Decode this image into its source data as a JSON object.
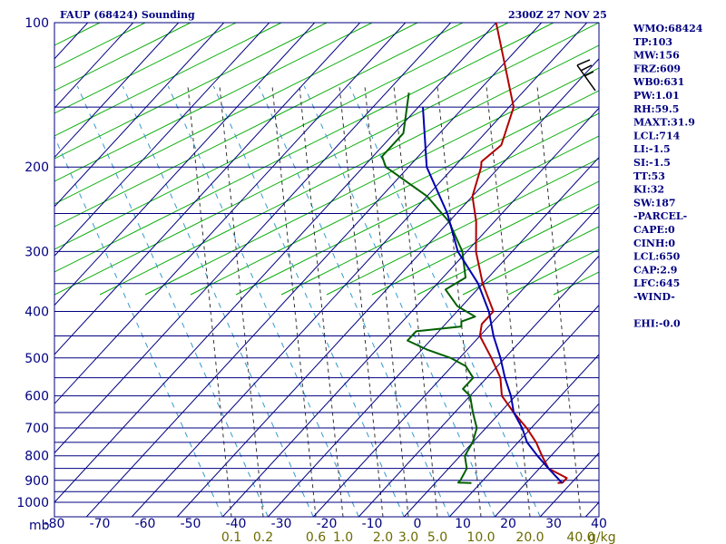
{
  "title_left": "FAUP (68424) Sounding",
  "title_right": "2300Z 27 NOV 25",
  "side_panel": [
    "WMO:68424",
    "TP:103",
    "MW:156",
    "FRZ:609",
    "WB0:631",
    "PW:1.01",
    "RH:59.5",
    "MAXT:31.9",
    "LCL:714",
    "LI:-1.5",
    "SI:-1.5",
    "TT:53",
    "KI:32",
    "SW:187",
    "-PARCEL-",
    "CAPE:0",
    "CINH:0",
    "LCL:650",
    "CAP:2.9",
    "LFC:645",
    "-WIND-",
    "",
    "EHI:-0.0"
  ],
  "colors": {
    "grid": "#000080",
    "dry_adiabat": "#00aa00",
    "mixing_ratio": "#333333",
    "moist_adiabat": "#3399cc",
    "temperature": "#b00000",
    "dewpoint": "#006000",
    "parcel": "#0000b0",
    "mixing_label": "#6b6b00"
  },
  "chart_data": {
    "type": "skew-t",
    "pressure_label": "mb",
    "pressure_ticks": [
      "100",
      "200",
      "300",
      "400",
      "500",
      "600",
      "700",
      "800",
      "900",
      "1000"
    ],
    "pressure_levels": [
      100,
      150,
      200,
      250,
      300,
      350,
      400,
      450,
      500,
      550,
      600,
      650,
      700,
      750,
      800,
      850,
      900,
      950,
      1000
    ],
    "xlim": [
      -80,
      40
    ],
    "temperature_ticks": [
      "-80",
      "-70",
      "-60",
      "-50",
      "-40",
      "-30",
      "-20",
      "-10",
      "0",
      "10",
      "20",
      "30",
      "40"
    ],
    "mixing_ratio_unit": "g/kg",
    "mixing_ratio_labels": [
      "0.1",
      "0.2",
      "0.6",
      "1.0",
      "2.0",
      "3.0",
      "5.0",
      "10.0",
      "20.0",
      "40.0"
    ],
    "series": [
      {
        "key": "temperature",
        "points": [
          [
            100,
            -80
          ],
          [
            150,
            -59
          ],
          [
            180,
            -54
          ],
          [
            195,
            -55
          ],
          [
            200,
            -54
          ],
          [
            230,
            -50
          ],
          [
            260,
            -44
          ],
          [
            300,
            -38
          ],
          [
            350,
            -30
          ],
          [
            400,
            -22
          ],
          [
            425,
            -22
          ],
          [
            450,
            -20
          ],
          [
            500,
            -13
          ],
          [
            550,
            -7
          ],
          [
            600,
            -3
          ],
          [
            650,
            3
          ],
          [
            700,
            9
          ],
          [
            750,
            14
          ],
          [
            800,
            18
          ],
          [
            850,
            22
          ],
          [
            890,
            28
          ],
          [
            910,
            28
          ],
          [
            912,
            27
          ]
        ]
      },
      {
        "key": "dewpoint",
        "points": [
          [
            140,
            -85
          ],
          [
            170,
            -78
          ],
          [
            190,
            -78
          ],
          [
            200,
            -75
          ],
          [
            230,
            -60
          ],
          [
            260,
            -50
          ],
          [
            300,
            -41
          ],
          [
            340,
            -35
          ],
          [
            360,
            -37
          ],
          [
            390,
            -31
          ],
          [
            410,
            -25
          ],
          [
            420,
            -27
          ],
          [
            430,
            -26
          ],
          [
            440,
            -35
          ],
          [
            460,
            -35
          ],
          [
            480,
            -29
          ],
          [
            500,
            -22
          ],
          [
            520,
            -17
          ],
          [
            550,
            -13
          ],
          [
            580,
            -13
          ],
          [
            600,
            -10
          ],
          [
            650,
            -6
          ],
          [
            700,
            -2
          ],
          [
            750,
            0
          ],
          [
            800,
            1
          ],
          [
            850,
            4
          ],
          [
            900,
            5
          ],
          [
            910,
            5
          ],
          [
            912,
            8
          ]
        ]
      },
      {
        "key": "parcel",
        "points": [
          [
            150,
            -79
          ],
          [
            200,
            -66
          ],
          [
            250,
            -52
          ],
          [
            300,
            -42
          ],
          [
            350,
            -31
          ],
          [
            400,
            -23
          ],
          [
            450,
            -17
          ],
          [
            500,
            -11
          ],
          [
            550,
            -6
          ],
          [
            600,
            -1
          ],
          [
            650,
            3
          ],
          [
            700,
            8
          ],
          [
            750,
            12
          ],
          [
            800,
            17
          ],
          [
            850,
            22
          ],
          [
            912,
            28
          ]
        ]
      }
    ],
    "wind_barb": {
      "pressure": 135
    }
  }
}
